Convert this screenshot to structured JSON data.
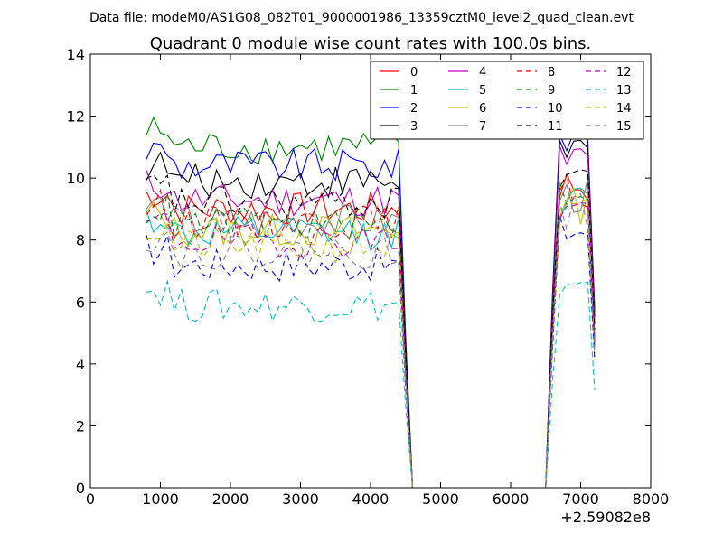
{
  "chart_data": {
    "type": "line",
    "suptitle": "Data file: modeM0/AS1G08_082T01_9000001986_13359cztM0_level2_quad_clean.evt",
    "title": "Quadrant 0 module wise count rates with 100.0s bins.",
    "xlabel": "",
    "ylabel": "",
    "x_offset_label": "+2.59082e8",
    "xlim": [
      0,
      8000
    ],
    "ylim": [
      0,
      14
    ],
    "x_ticks": [
      0,
      1000,
      2000,
      3000,
      4000,
      5000,
      6000,
      7000,
      8000
    ],
    "y_ticks": [
      0,
      2,
      4,
      6,
      8,
      10,
      12,
      14
    ],
    "legend_position": "top-right",
    "legend_columns": 4,
    "x": [
      800,
      900,
      1000,
      1100,
      1200,
      1300,
      1400,
      1500,
      1600,
      1700,
      1800,
      1900,
      2000,
      2100,
      2200,
      2300,
      2400,
      2500,
      2600,
      2700,
      2800,
      2900,
      3000,
      3100,
      3200,
      3300,
      3400,
      3500,
      3600,
      3700,
      3800,
      3900,
      4000,
      4100,
      4200,
      4300,
      4400,
      4500,
      4600,
      4700,
      4800,
      4900,
      5000,
      5100,
      5200,
      5300,
      5400,
      5500,
      5600,
      5700,
      5800,
      5900,
      6000,
      6100,
      6200,
      6300,
      6400,
      6500,
      6600,
      6700,
      6800,
      6900,
      7000,
      7100,
      7200
    ],
    "series": [
      {
        "name": "0",
        "color": "#ff0000",
        "style": "solid",
        "level": 9.0,
        "tail": 9.8
      },
      {
        "name": "1",
        "color": "#008000",
        "style": "solid",
        "level": 11.0,
        "tail": 11.6
      },
      {
        "name": "2",
        "color": "#0000ff",
        "style": "solid",
        "level": 10.4,
        "tail": 11.4
      },
      {
        "name": "3",
        "color": "#000000",
        "style": "solid",
        "level": 9.9,
        "tail": 11.0
      },
      {
        "name": "4",
        "color": "#bf00bf",
        "style": "solid",
        "level": 9.3,
        "tail": 10.6
      },
      {
        "name": "5",
        "color": "#00bfbf",
        "style": "solid",
        "level": 8.2,
        "tail": 9.2
      },
      {
        "name": "6",
        "color": "#bfbf00",
        "style": "solid",
        "level": 8.3,
        "tail": 9.1
      },
      {
        "name": "7",
        "color": "#808080",
        "style": "solid",
        "level": 8.6,
        "tail": 9.4
      },
      {
        "name": "8",
        "color": "#ff0000",
        "style": "dashed",
        "level": 8.6,
        "tail": 9.5
      },
      {
        "name": "9",
        "color": "#008000",
        "style": "dashed",
        "level": 8.5,
        "tail": 9.6
      },
      {
        "name": "10",
        "color": "#0000ff",
        "style": "dashed",
        "level": 7.2,
        "tail": 8.3
      },
      {
        "name": "11",
        "color": "#000000",
        "style": "dashed",
        "level": 9.2,
        "tail": 10.2
      },
      {
        "name": "12",
        "color": "#bf00bf",
        "style": "dashed",
        "level": 8.0,
        "tail": 9.0
      },
      {
        "name": "13",
        "color": "#00bfbf",
        "style": "dashed",
        "level": 5.9,
        "tail": 6.3
      },
      {
        "name": "14",
        "color": "#bfbf00",
        "style": "dashed",
        "level": 7.8,
        "tail": 8.8
      },
      {
        "name": "15",
        "color": "#808080",
        "style": "dashed",
        "level": 7.6,
        "tail": 8.9
      }
    ]
  }
}
